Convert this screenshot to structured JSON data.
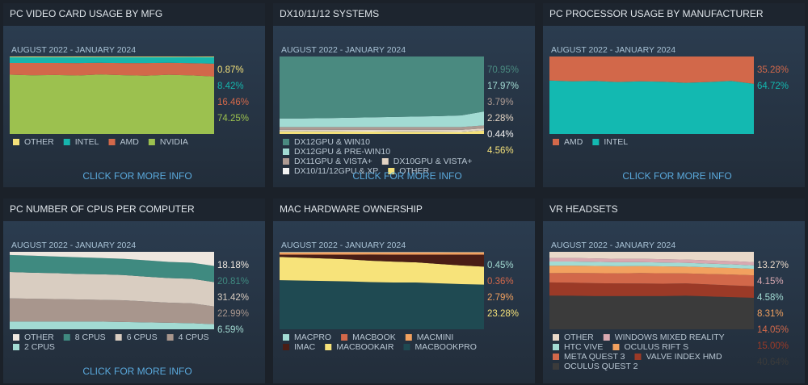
{
  "chart_data": [
    {
      "type": "area",
      "title": "PC VIDEO CARD USAGE BY MFG",
      "subtitle": "AUGUST 2022 - JANUARY 2024",
      "ylim": [
        0,
        100
      ],
      "link": "CLICK FOR MORE INFO",
      "series": [
        {
          "name": "OTHER",
          "color": "#f3e07a",
          "values": [
            0.9,
            1.0,
            0.9,
            1.0,
            0.9,
            0.9,
            0.9,
            0.9,
            0.8,
            0.87
          ],
          "value_labels": [
            null,
            null,
            null,
            null,
            null,
            null,
            null,
            null,
            null,
            "0.87%"
          ]
        },
        {
          "name": "INTEL",
          "color": "#16b5ad",
          "values": [
            7.4,
            7.3,
            7.4,
            7.5,
            7.2,
            7.6,
            7.6,
            7.2,
            7.8,
            8.42
          ],
          "value_labels": [
            null,
            null,
            null,
            null,
            null,
            null,
            null,
            null,
            null,
            "8.42%"
          ]
        },
        {
          "name": "AMD",
          "color": "#d2684a",
          "values": [
            15.2,
            15.9,
            15.5,
            16.0,
            15.1,
            15.6,
            16.3,
            15.5,
            15.8,
            16.46
          ],
          "value_labels": [
            null,
            null,
            null,
            null,
            null,
            null,
            null,
            null,
            null,
            "16.46%"
          ]
        },
        {
          "name": "NVIDIA",
          "color": "#9cc14f",
          "values": [
            76.5,
            75.8,
            76.2,
            75.5,
            76.8,
            75.9,
            75.2,
            76.4,
            75.6,
            74.25
          ],
          "value_labels": [
            null,
            null,
            null,
            null,
            null,
            null,
            null,
            null,
            null,
            "74.25%"
          ]
        }
      ]
    },
    {
      "type": "area",
      "title": "DX10/11/12 SYSTEMS",
      "subtitle": "AUGUST 2022 - JANUARY 2024",
      "ylim": [
        0,
        100
      ],
      "link": "CLICK FOR MORE INFO",
      "series": [
        {
          "name": "DX12GPU & WIN10",
          "color": "#4a8a80",
          "values": [
            80,
            80,
            79.5,
            79,
            78.5,
            78,
            77.5,
            77,
            76,
            70.95
          ],
          "value_labels": [
            null,
            null,
            null,
            null,
            null,
            null,
            null,
            null,
            null,
            "70.95%"
          ]
        },
        {
          "name": "DX12GPU & PRE-WIN10",
          "color": "#a2dbd3",
          "values": [
            11,
            11,
            11.5,
            12,
            12.5,
            13,
            13.5,
            14,
            15,
            17.97
          ],
          "value_labels": [
            null,
            null,
            null,
            null,
            null,
            null,
            null,
            null,
            null,
            "17.97%"
          ]
        },
        {
          "name": "DX11GPU & VISTA+",
          "color": "#ad9a92",
          "values": [
            3.5,
            3.5,
            3.5,
            3.6,
            3.6,
            3.6,
            3.7,
            3.7,
            3.7,
            3.79
          ],
          "value_labels": [
            null,
            null,
            null,
            null,
            null,
            null,
            null,
            null,
            null,
            "3.79%"
          ]
        },
        {
          "name": "DX10GPU & VISTA+",
          "color": "#e2d3c3",
          "values": [
            1.5,
            1.5,
            1.6,
            1.7,
            1.8,
            1.9,
            2.0,
            2.1,
            2.2,
            2.28
          ],
          "value_labels": [
            null,
            null,
            null,
            null,
            null,
            null,
            null,
            null,
            null,
            "2.28%"
          ]
        },
        {
          "name": "DX10/11/12GPU & XP",
          "color": "#f2f2f2",
          "values": [
            0.6,
            0.6,
            0.6,
            0.5,
            0.5,
            0.5,
            0.5,
            0.5,
            0.5,
            0.44
          ],
          "value_labels": [
            null,
            null,
            null,
            null,
            null,
            null,
            null,
            null,
            null,
            "0.44%"
          ]
        },
        {
          "name": "OTHER",
          "color": "#f3e07a",
          "values": [
            3.4,
            3.4,
            3.3,
            3.2,
            3.1,
            3.0,
            2.8,
            2.7,
            2.6,
            4.56
          ],
          "value_labels": [
            null,
            null,
            null,
            null,
            null,
            null,
            null,
            null,
            null,
            "4.56%"
          ]
        }
      ]
    },
    {
      "type": "area",
      "title": "PC PROCESSOR USAGE BY MANUFACTURER",
      "subtitle": "AUGUST 2022 - JANUARY 2024",
      "ylim": [
        0,
        100
      ],
      "link": "CLICK FOR MORE INFO",
      "series": [
        {
          "name": "AMD",
          "color": "#d2684a",
          "values": [
            31,
            32,
            31.5,
            33,
            32,
            32.5,
            34,
            33,
            31.5,
            35.28
          ],
          "value_labels": [
            null,
            null,
            null,
            null,
            null,
            null,
            null,
            null,
            null,
            "35.28%"
          ]
        },
        {
          "name": "INTEL",
          "color": "#13b9b1",
          "values": [
            69,
            68,
            68.5,
            67,
            68,
            67.5,
            66,
            67,
            68.5,
            64.72
          ],
          "value_labels": [
            null,
            null,
            null,
            null,
            null,
            null,
            null,
            null,
            null,
            "64.72%"
          ]
        }
      ]
    },
    {
      "type": "area",
      "title": "PC NUMBER OF CPUS PER COMPUTER",
      "subtitle": "AUGUST 2022 - JANUARY 2024",
      "ylim": [
        0,
        100
      ],
      "link": "CLICK FOR MORE INFO",
      "series": [
        {
          "name": "OTHER",
          "color": "#eee7df",
          "values": [
            4,
            5,
            6,
            7,
            8,
            9,
            11,
            13,
            14,
            18.18
          ],
          "value_labels": [
            null,
            null,
            null,
            null,
            null,
            null,
            null,
            null,
            null,
            "18.18%"
          ]
        },
        {
          "name": "8 CPUS",
          "color": "#3f8a80",
          "values": [
            22,
            22,
            21.5,
            21.5,
            21,
            21,
            21,
            20.8,
            20.8,
            20.81
          ],
          "value_labels": [
            null,
            null,
            null,
            null,
            null,
            null,
            null,
            null,
            null,
            "20.81%"
          ]
        },
        {
          "name": "6 CPUS",
          "color": "#d9cdc1",
          "values": [
            34,
            33.5,
            33.5,
            33,
            33,
            32.5,
            32,
            31.8,
            31.6,
            31.42
          ],
          "value_labels": [
            null,
            null,
            null,
            null,
            null,
            null,
            null,
            null,
            null,
            "31.42%"
          ]
        },
        {
          "name": "4 CPUS",
          "color": "#a8968d",
          "values": [
            30,
            29.5,
            29,
            28.5,
            28,
            28,
            27,
            25.9,
            25.6,
            22.99
          ],
          "value_labels": [
            null,
            null,
            null,
            null,
            null,
            null,
            null,
            null,
            null,
            "22.99%"
          ]
        },
        {
          "name": "2 CPUS",
          "color": "#a2dbd3",
          "values": [
            10,
            10,
            10,
            10,
            10,
            9.5,
            9,
            8.5,
            8,
            6.59
          ],
          "value_labels": [
            null,
            null,
            null,
            null,
            null,
            null,
            null,
            null,
            null,
            "6.59%"
          ]
        }
      ]
    },
    {
      "type": "area",
      "title": "MAC HARDWARE OWNERSHIP",
      "subtitle": "AUGUST 2022 - JANUARY 2024",
      "ylim": [
        0,
        100
      ],
      "series": [
        {
          "name": "MACPRO",
          "color": "#a2dbd3",
          "values": [
            0.6,
            0.6,
            0.55,
            0.55,
            0.5,
            0.5,
            0.5,
            0.5,
            0.45,
            0.45
          ],
          "value_labels": [
            null,
            null,
            null,
            null,
            null,
            null,
            null,
            null,
            null,
            "0.45%"
          ]
        },
        {
          "name": "MACBOOK",
          "color": "#d2684a",
          "values": [
            0.5,
            0.5,
            0.45,
            0.45,
            0.4,
            0.4,
            0.4,
            0.4,
            0.36,
            0.36
          ],
          "value_labels": [
            null,
            null,
            null,
            null,
            null,
            null,
            null,
            null,
            null,
            "0.36%"
          ]
        },
        {
          "name": "MACMINI",
          "color": "#f2a15f",
          "values": [
            2.5,
            2.5,
            2.6,
            2.6,
            2.6,
            2.7,
            2.7,
            2.7,
            2.8,
            2.79
          ],
          "value_labels": [
            null,
            null,
            null,
            null,
            null,
            null,
            null,
            null,
            null,
            "2.79%"
          ]
        },
        {
          "name": "IMAC",
          "color": "#4a1d15",
          "values": [
            3,
            4,
            5,
            6,
            8,
            9,
            10,
            12,
            14,
            15.5
          ]
        },
        {
          "name": "MACBOOKAIR",
          "color": "#f7e37a",
          "values": [
            30,
            29.5,
            29,
            28.5,
            27.5,
            27,
            26,
            25,
            24,
            23.28
          ],
          "value_labels": [
            null,
            null,
            null,
            null,
            null,
            null,
            null,
            null,
            null,
            "23.28%"
          ]
        },
        {
          "name": "MACBOOKPRO",
          "color": "#1f4a52",
          "values": [
            63.4,
            62.9,
            62.4,
            61.9,
            61,
            60.4,
            60.4,
            59.4,
            58.39,
            57.62
          ]
        }
      ]
    },
    {
      "type": "area",
      "title": "VR HEADSETS",
      "subtitle": "AUGUST 2022 - JANUARY 2024",
      "ylim": [
        0,
        100
      ],
      "series": [
        {
          "name": "OTHER",
          "color": "#e9d9c9",
          "values": [
            8,
            8,
            8.5,
            9,
            9,
            9.5,
            10,
            11,
            12,
            13.27
          ],
          "value_labels": [
            null,
            null,
            null,
            null,
            null,
            null,
            null,
            null,
            null,
            "13.27%"
          ]
        },
        {
          "name": "WINDOWS MIXED REALITY",
          "color": "#d9a9b1",
          "values": [
            4.5,
            4.5,
            4.4,
            4.4,
            4.3,
            4.3,
            4.2,
            4.2,
            4.2,
            4.15
          ],
          "value_labels": [
            null,
            null,
            null,
            null,
            null,
            null,
            null,
            null,
            null,
            "4.15%"
          ]
        },
        {
          "name": "HTC VIVE",
          "color": "#a2dbd3",
          "values": [
            5.5,
            5.4,
            5.3,
            5.2,
            5.1,
            5,
            4.9,
            4.8,
            4.7,
            4.58
          ],
          "value_labels": [
            null,
            null,
            null,
            null,
            null,
            null,
            null,
            null,
            null,
            "4.58%"
          ]
        },
        {
          "name": "OCULUS RIFT S",
          "color": "#f2a15f",
          "values": [
            9.5,
            9.4,
            9.3,
            9.2,
            9,
            8.9,
            8.7,
            8.6,
            8.4,
            8.31
          ],
          "value_labels": [
            null,
            null,
            null,
            null,
            null,
            null,
            null,
            null,
            null,
            "8.31%"
          ]
        },
        {
          "name": "META QUEST 3",
          "color": "#d2684a",
          "values": [
            12,
            12.5,
            13,
            13,
            13.5,
            13.5,
            13,
            13.5,
            14,
            14.05
          ],
          "value_labels": [
            null,
            null,
            null,
            null,
            null,
            null,
            null,
            null,
            null,
            "14.05%"
          ]
        },
        {
          "name": "VALVE INDEX HMD",
          "color": "#9b3a27",
          "values": [
            17,
            16.8,
            16.6,
            16.4,
            16.2,
            16,
            15.8,
            15.5,
            15.2,
            15.0
          ],
          "value_labels": [
            null,
            null,
            null,
            null,
            null,
            null,
            null,
            null,
            null,
            "15.00%"
          ]
        },
        {
          "name": "OCULUS QUEST 2",
          "color": "#3b3b3b",
          "values": [
            43.5,
            43.4,
            42.9,
            42.8,
            42.9,
            42.8,
            43.4,
            42.4,
            41.5,
            40.64
          ],
          "value_labels": [
            null,
            null,
            null,
            null,
            null,
            null,
            null,
            null,
            null,
            "40.64%"
          ]
        }
      ]
    }
  ]
}
